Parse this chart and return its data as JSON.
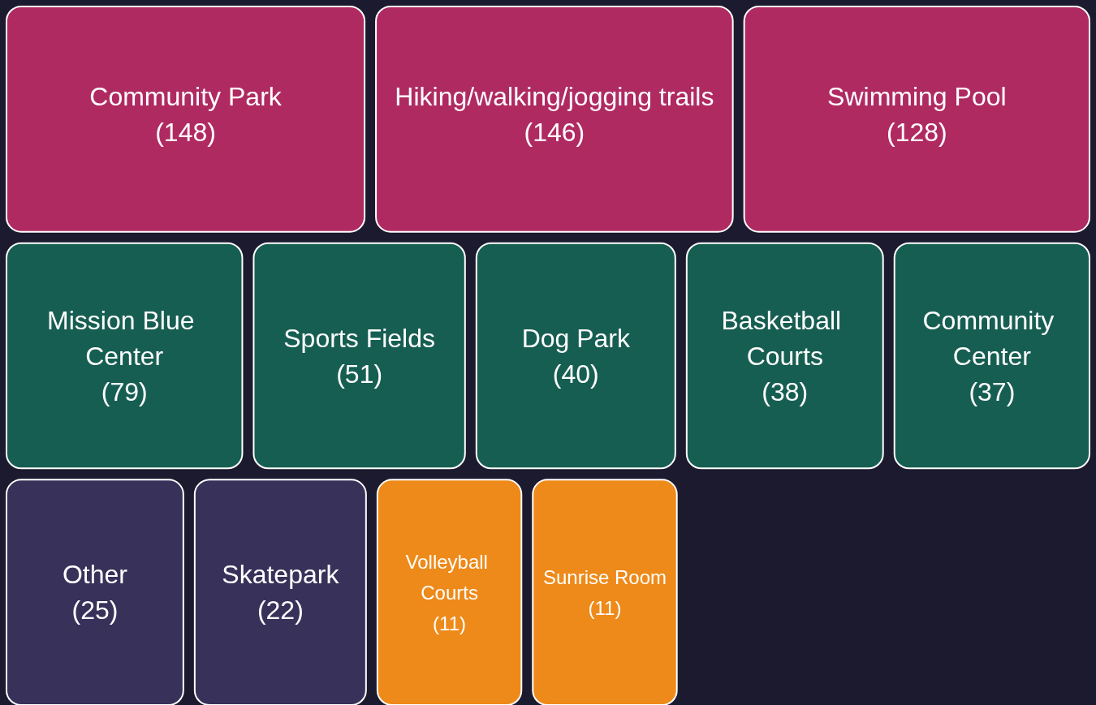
{
  "chart_data": {
    "type": "other",
    "categories": [
      "Community Park",
      "Hiking/walking/jogging trails",
      "Swimming Pool",
      "Mission Blue Center",
      "Sports Fields",
      "Dog Park",
      "Basketball Courts",
      "Community Center",
      "Other",
      "Skatepark",
      "Volleyball Courts",
      "Sunrise Room"
    ],
    "values": [
      148,
      146,
      128,
      79,
      51,
      40,
      38,
      37,
      25,
      22,
      11,
      11
    ],
    "colors": [
      "#b02a62",
      "#b02a62",
      "#b02a62",
      "#175e52",
      "#175e52",
      "#175e52",
      "#175e52",
      "#175e52",
      "#38325a",
      "#38325a",
      "#ee8a1a",
      "#ee8a1a"
    ],
    "value_labels": [
      "(148)",
      "(146)",
      "(128)",
      "(79)",
      "(51)",
      "(40)",
      "(38)",
      "(37)",
      "(25)",
      "(22)",
      "(11)",
      "(11)"
    ]
  }
}
